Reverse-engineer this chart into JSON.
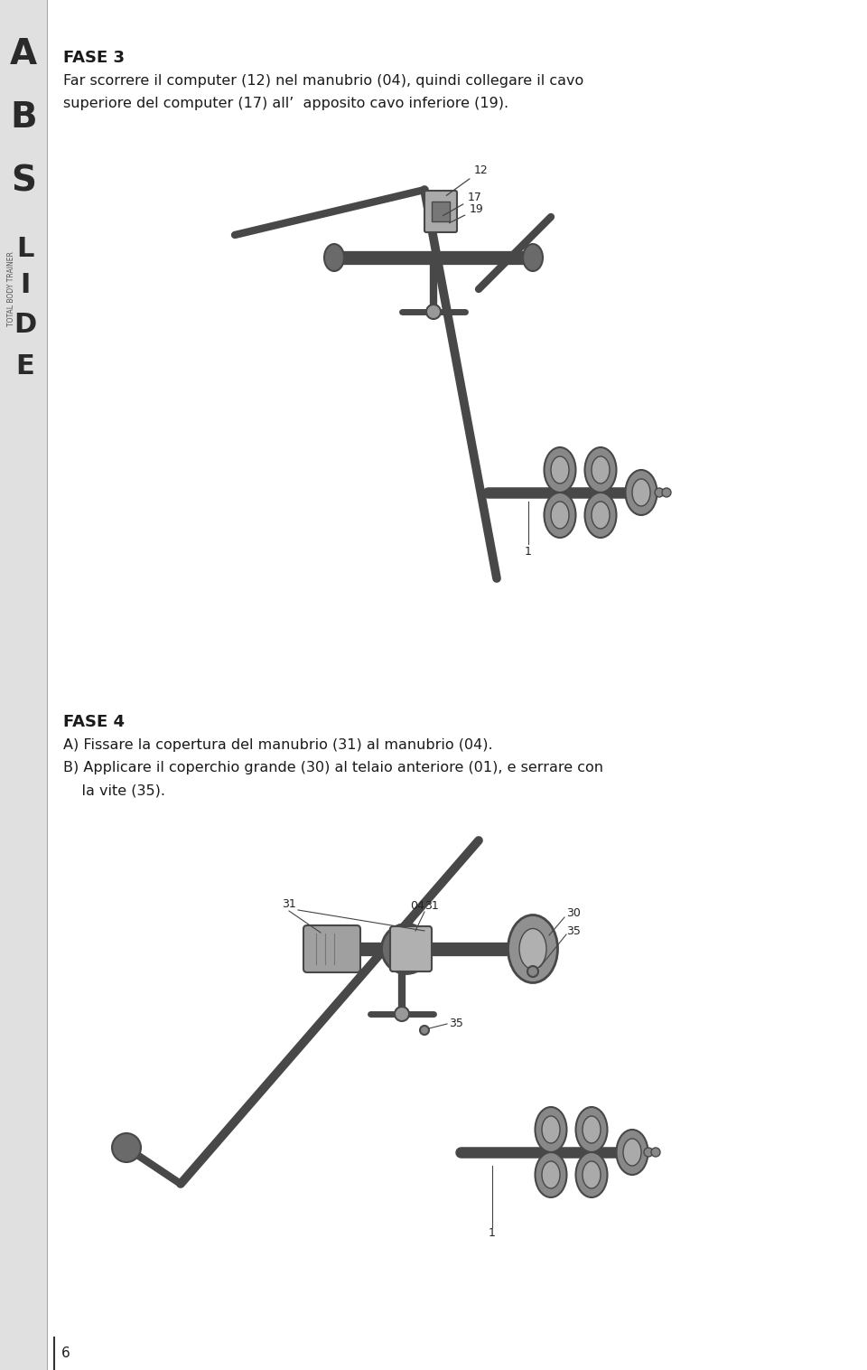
{
  "background_color": "#ffffff",
  "page_width": 9.6,
  "page_height": 15.16,
  "sidebar_color": "#e8e8e8",
  "fase3_title": "FASE 3",
  "fase3_text_line1": "Far scorrere il computer (12) nel manubrio (04), quindi collegare il cavo",
  "fase3_text_line2": "superiore del computer (17) all’  apposito cavo inferiore (19).",
  "fase4_title": "FASE 4",
  "fase4_textA": "A) Fissare la copertura del manubrio (31) al manubrio (04).",
  "fase4_textB": "B) Applicare il coperchio grande (30) al telaio anteriore (01), e serrare con",
  "fase4_textB2": "    la vite (35).",
  "page_number": "6",
  "title_fontsize": 13,
  "body_fontsize": 11.5,
  "text_color": "#1a1a1a"
}
